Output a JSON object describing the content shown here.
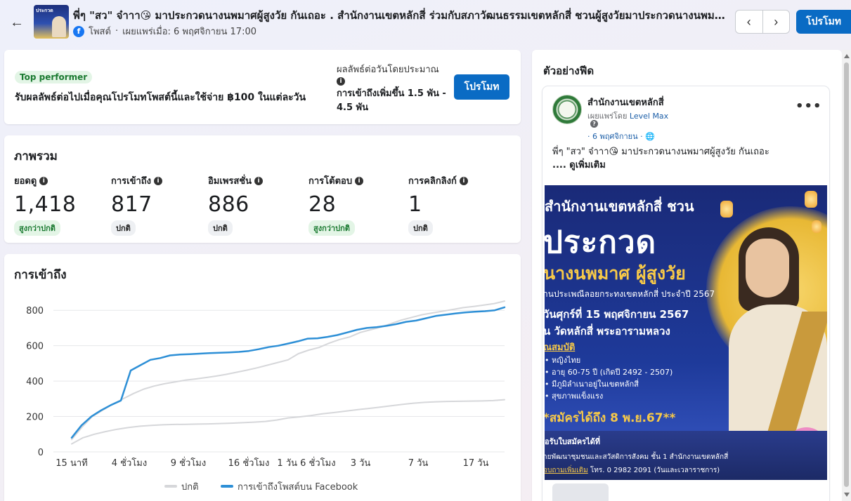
{
  "header": {
    "title": "พี่ๆ \"สว\" จ๋าาา😘 มาประกวดนางนพมาศผู้สูงวัย กันเถอะ . สำนักงานเขตหลักสี่ ร่วมกับสภาวัฒนธรรมเขตหลักสี่ ชวนผู้สูงวัยมาประกวดนางนพมาศผู้สูงวัย",
    "thumb_text": "ประกวด",
    "post_type": "โพสต์",
    "published": "เผยแพร่เมื่อ: 6 พฤศจิกายน 17:00",
    "fb_letter": "f",
    "promote_label": "โปรโมท",
    "prev_icon": "‹",
    "next_icon": "›",
    "back_icon": "←"
  },
  "performer": {
    "badge": "Top performer",
    "description": "รับผลลัพธ์ต่อไปเมื่อคุณโปรโมทโพสต์นี้และใช้จ่าย ฿100 ในแต่ละวัน",
    "estimate_label": "ผลลัพธ์ต่อวันโดยประมาณ",
    "estimate_value": "การเข้าถึงเพิ่มขึ้น 1.5 พัน - 4.5 พัน",
    "promote_label": "โปรโมท"
  },
  "overview": {
    "title": "ภาพรวม",
    "metrics": [
      {
        "label": "ยอดดู",
        "value": "1,418",
        "badge": "สูงกว่าปกติ",
        "status": "high"
      },
      {
        "label": "การเข้าถึง",
        "value": "817",
        "badge": "ปกติ",
        "status": "normal"
      },
      {
        "label": "อิมเพรสชั่น",
        "value": "886",
        "badge": "ปกติ",
        "status": "normal"
      },
      {
        "label": "การโต้ตอบ",
        "value": "28",
        "badge": "สูงกว่าปกติ",
        "status": "high"
      },
      {
        "label": "การคลิกลิงก์",
        "value": "1",
        "badge": "ปกติ",
        "status": "normal"
      }
    ]
  },
  "reach": {
    "title": "การเข้าถึง"
  },
  "chart_data": {
    "type": "line",
    "title": "การเข้าถึง",
    "xlabel": "",
    "ylabel": "",
    "ylim": [
      0,
      900
    ],
    "yticks": [
      0,
      200,
      400,
      600,
      800
    ],
    "x_tick_labels": [
      "15 นาที",
      "4 ชั่วโมง",
      "9 ชั่วโมง",
      "16 ชั่วโมง",
      "1 วัน 6 ชั่วโมง",
      "3 วัน",
      "7 วัน",
      "17 วัน"
    ],
    "grid": true,
    "legend_position": "bottom",
    "series": [
      {
        "name": "ปกติ",
        "color": "#d6d7da",
        "role": "upper",
        "values": [
          70,
          140,
          200,
          235,
          270,
          300,
          330,
          355,
          372,
          385,
          395,
          405,
          412,
          420,
          428,
          438,
          450,
          462,
          475,
          490,
          505,
          520,
          555,
          575,
          590,
          615,
          635,
          650,
          675,
          690,
          705,
          725,
          745,
          760,
          775,
          785,
          795,
          805,
          815,
          822,
          830,
          838,
          852
        ]
      },
      {
        "name": "ปกติ",
        "color": "#d6d7da",
        "role": "lower",
        "values": [
          45,
          80,
          100,
          115,
          128,
          138,
          145,
          150,
          153,
          155,
          156,
          157,
          158,
          160,
          162,
          165,
          168,
          172,
          180,
          192,
          198,
          205,
          215,
          222,
          230,
          238,
          245,
          252,
          260,
          268,
          275,
          280,
          283,
          285,
          286,
          287,
          288,
          290,
          295
        ]
      },
      {
        "name": "การเข้าถึงโพสต์บน Facebook",
        "color": "#2d8fd6",
        "role": "main",
        "values": [
          80,
          150,
          200,
          235,
          265,
          290,
          460,
          490,
          520,
          530,
          545,
          550,
          552,
          555,
          558,
          560,
          562,
          565,
          570,
          580,
          592,
          600,
          612,
          625,
          640,
          642,
          650,
          660,
          675,
          690,
          700,
          705,
          712,
          722,
          735,
          742,
          755,
          768,
          775,
          782,
          788,
          792,
          795,
          800,
          817
        ]
      }
    ]
  },
  "preview": {
    "title": "ตัวอย่างฟีด",
    "page_name": "สำนักงานเขตหลักสี่",
    "published_by_prefix": "เผยแพร่โดย",
    "published_by": "Level Max",
    "date": "· 6 พฤศจิกายน · ",
    "globe_icon": "🌐",
    "help_icon": "?",
    "more_icon": "•••",
    "text": "พี่ๆ \"สว\" จ๋าาา😘 มาประกวดนางนพมาศผู้สูงวัย กันเถอะ",
    "see_more": ".... ดูเพิ่มเติม",
    "poster": {
      "line1": "สำนักงานเขตหลักสี่ ชวน",
      "line2": "ประกวด",
      "line3": "นางนพมาศ ผู้สูงวัย",
      "line4": "านประเพณีลอยกระทงเขตหลักสี่  ประจำปี 2567",
      "line5": "วันศุกร์ที่ 15 พฤศจิกายน 2567",
      "line6": "น วัดหลักสี่ พระอารามหลวง",
      "qual_title": "ณสมบัติ",
      "qualifications": [
        "หญิงไทย",
        "อายุ 60-75 ปี  (เกิดปี 2492 - 2507)",
        "มีภูมิลำเนาอยู่ในเขตหลักสี่",
        "สุขภาพแข็งแรง"
      ],
      "deadline": "*สมัครได้ถึง 8 พ.ย.67**",
      "apply_title": "อรับใบสมัครได้ที่",
      "apply_line": "ายพัฒนาชุมชนและสวัสดิการสังคม ชั้น 1 สำนักงานเขตหลักสี่",
      "contact_link": "อบถามเพิ่มเติม",
      "contact_rest": " โทร. 0 2982 2091 (วันและเวลาราชการ)"
    }
  }
}
